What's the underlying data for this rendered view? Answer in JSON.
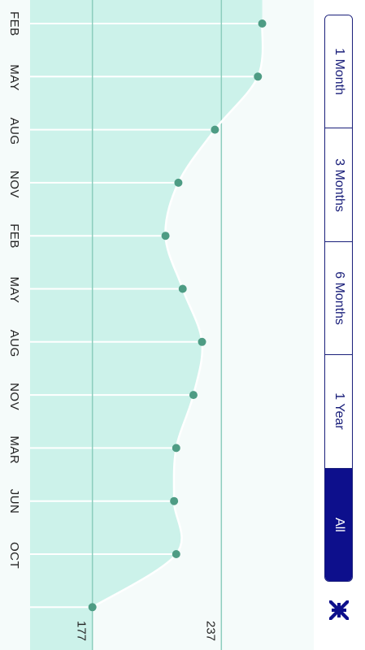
{
  "chart_data": {
    "type": "area",
    "orientation": "rotated-90",
    "x": [
      "FEB",
      "MAY",
      "AUG",
      "NOV",
      "FEB",
      "MAY",
      "AUG",
      "NOV",
      "MAR",
      "JUN",
      "OCT",
      ""
    ],
    "values": [
      256,
      254,
      234,
      217,
      211,
      219,
      228,
      224,
      216,
      215,
      216,
      177
    ],
    "reference_lines": [
      177,
      237
    ],
    "reference_labels": [
      "177",
      "237"
    ],
    "ylim": [
      148,
      280
    ],
    "grid": true,
    "colors": {
      "fill": "#ccf2ea",
      "line": "#ffffff",
      "point": "#4e9c84",
      "ref_line": "#8ccdbd"
    }
  },
  "range_selector": {
    "options": [
      "1 Month",
      "3 Months",
      "6 Months",
      "1 Year",
      "All"
    ],
    "selected": "All"
  },
  "icons": {
    "collapse": "collapse-arrows-icon"
  },
  "colors": {
    "accent": "#0d0f8c",
    "border": "#1a1f7a"
  }
}
